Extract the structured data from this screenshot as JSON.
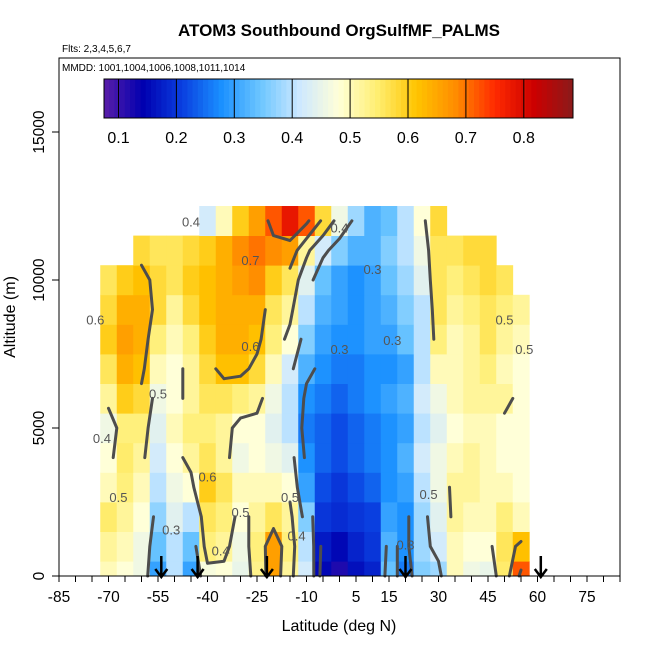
{
  "chart_data": {
    "type": "heatmap",
    "title": "ATOM3 Southbound OrgSulfMF_PALMS",
    "subtitle_flights": "Flts: 2,3,4,5,6,7",
    "subtitle_dates": "MMDD: 1001,1004,1006,1008,1011,1014",
    "xlabel": "Latitude (deg N)",
    "ylabel": "Altitude (m)",
    "xlim": [
      -85,
      85
    ],
    "ylim": [
      0,
      17500
    ],
    "x_tick_labels": [
      "-85",
      "-70",
      "-55",
      "-40",
      "-25",
      "-10",
      "5",
      "15",
      "30",
      "45",
      "60",
      "75"
    ],
    "x_tick_values": [
      -85,
      -70,
      -55,
      -40,
      -25,
      -10,
      5,
      15,
      30,
      45,
      60,
      75
    ],
    "x_minor_step": 5,
    "y_tick_labels": [
      "0",
      "5000",
      "10000",
      "15000"
    ],
    "y_tick_values": [
      0,
      5000,
      10000,
      15000
    ],
    "colorbar": {
      "min": 0.075,
      "max": 0.885,
      "tick_labels": [
        "0.1",
        "0.2",
        "0.3",
        "0.4",
        "0.5",
        "0.6",
        "0.7",
        "0.8"
      ],
      "tick_values": [
        0.1,
        0.2,
        0.3,
        0.4,
        0.5,
        0.6,
        0.7,
        0.8
      ],
      "colors": [
        "#5a1ea8",
        "#0000b0",
        "#0a3fe0",
        "#1a90ff",
        "#6cc6ff",
        "#cde8ff",
        "#ffffd8",
        "#ffee70",
        "#ffc400",
        "#ff8c00",
        "#ff2a00",
        "#cc0000",
        "#8b1a1a"
      ]
    },
    "grid_axes": {
      "lat": [
        -70,
        -65,
        -60,
        -55,
        -50,
        -45,
        -40,
        -35,
        -30,
        -25,
        -20,
        -15,
        -10,
        -5,
        0,
        5,
        10,
        15,
        20,
        25,
        30,
        35,
        40,
        45,
        50,
        55
      ],
      "alt": [
        0,
        1000,
        2000,
        3000,
        4000,
        5000,
        6000,
        7000,
        8000,
        9000,
        10000,
        11000,
        12000
      ]
    },
    "grid_values": [
      [
        0.5,
        0.48,
        0.46,
        0.3,
        0.4,
        0.3,
        0.47,
        0.48,
        0.45,
        0.53,
        0.66,
        0.52,
        0.42,
        0.15,
        0.12,
        0.16,
        0.18,
        0.34,
        0.26,
        0.36,
        0.38,
        0.5,
        0.46,
        0.45,
        0.55,
        0.72
      ],
      [
        0.52,
        0.5,
        0.46,
        0.34,
        0.4,
        0.34,
        0.54,
        0.52,
        0.46,
        0.54,
        0.66,
        0.54,
        0.4,
        0.17,
        0.15,
        0.18,
        0.2,
        0.32,
        0.28,
        0.38,
        0.42,
        0.5,
        0.48,
        0.48,
        0.56,
        0.62
      ],
      [
        0.55,
        0.52,
        0.48,
        0.37,
        0.44,
        0.4,
        0.56,
        0.54,
        0.48,
        0.52,
        0.56,
        0.52,
        0.36,
        0.2,
        0.19,
        0.2,
        0.21,
        0.3,
        0.28,
        0.38,
        0.44,
        0.52,
        0.5,
        0.5,
        0.54,
        0.5
      ],
      [
        0.5,
        0.54,
        0.5,
        0.4,
        0.46,
        0.48,
        0.6,
        0.56,
        0.5,
        0.5,
        0.5,
        0.48,
        0.3,
        0.22,
        0.2,
        0.22,
        0.24,
        0.28,
        0.3,
        0.4,
        0.46,
        0.52,
        0.52,
        0.5,
        0.5,
        0.48
      ],
      [
        0.48,
        0.55,
        0.52,
        0.42,
        0.48,
        0.52,
        0.56,
        0.52,
        0.46,
        0.48,
        0.46,
        0.44,
        0.28,
        0.24,
        0.22,
        0.24,
        0.26,
        0.28,
        0.32,
        0.42,
        0.46,
        0.5,
        0.52,
        0.5,
        0.48,
        0.48
      ],
      [
        0.46,
        0.54,
        0.54,
        0.44,
        0.5,
        0.54,
        0.54,
        0.52,
        0.48,
        0.48,
        0.44,
        0.4,
        0.26,
        0.24,
        0.22,
        0.24,
        0.26,
        0.28,
        0.3,
        0.4,
        0.44,
        0.48,
        0.5,
        0.5,
        0.48,
        0.48
      ],
      [
        0.52,
        0.6,
        0.58,
        0.46,
        0.48,
        0.52,
        0.56,
        0.56,
        0.54,
        0.52,
        0.46,
        0.4,
        0.28,
        0.26,
        0.24,
        0.26,
        0.28,
        0.3,
        0.32,
        0.42,
        0.46,
        0.5,
        0.52,
        0.52,
        0.52,
        0.48
      ],
      [
        0.56,
        0.64,
        0.62,
        0.5,
        0.48,
        0.52,
        0.58,
        0.62,
        0.62,
        0.58,
        0.5,
        0.42,
        0.32,
        0.28,
        0.26,
        0.26,
        0.28,
        0.28,
        0.3,
        0.4,
        0.5,
        0.5,
        0.52,
        0.54,
        0.5,
        0.48
      ],
      [
        0.6,
        0.66,
        0.64,
        0.54,
        0.5,
        0.54,
        0.6,
        0.64,
        0.64,
        0.62,
        0.54,
        0.48,
        0.36,
        0.3,
        0.28,
        0.28,
        0.3,
        0.3,
        0.34,
        0.4,
        0.54,
        0.5,
        0.52,
        0.56,
        0.52,
        0.5
      ],
      [
        0.58,
        0.64,
        0.64,
        0.58,
        0.52,
        0.58,
        0.62,
        0.64,
        0.64,
        0.64,
        0.56,
        0.52,
        0.4,
        0.32,
        0.3,
        0.28,
        0.3,
        0.32,
        0.36,
        0.4,
        0.56,
        0.52,
        0.54,
        0.56,
        0.54,
        0.52
      ],
      [
        0.56,
        0.6,
        0.62,
        0.58,
        0.56,
        0.6,
        0.62,
        0.64,
        0.66,
        0.68,
        0.6,
        0.56,
        0.44,
        0.34,
        0.3,
        0.28,
        0.3,
        0.34,
        0.38,
        0.44,
        0.56,
        0.54,
        0.56,
        0.58,
        0.56,
        0.54
      ],
      [
        0.55,
        0.56,
        0.58,
        0.56,
        0.56,
        0.58,
        0.6,
        0.64,
        0.68,
        0.7,
        0.68,
        0.66,
        0.52,
        0.42,
        0.36,
        0.32,
        0.32,
        0.36,
        0.4,
        0.46,
        0.56,
        0.56,
        0.58,
        0.58,
        0.56,
        0.55
      ],
      [
        0.55,
        0.52,
        0.5,
        0.46,
        0.48,
        0.44,
        0.42,
        0.5,
        0.6,
        0.66,
        0.72,
        0.78,
        0.72,
        0.58,
        0.46,
        0.38,
        0.32,
        0.34,
        0.4,
        0.48,
        0.58,
        0.58,
        0.58,
        0.58,
        0.56,
        0.55
      ]
    ],
    "grid_valid": [
      [
        1,
        1,
        1,
        1,
        1,
        1,
        1,
        1,
        1,
        1,
        1,
        1,
        1,
        1,
        1,
        1,
        1,
        1,
        1,
        1,
        1,
        1,
        1,
        1,
        1,
        1
      ],
      [
        1,
        1,
        1,
        1,
        1,
        1,
        1,
        1,
        1,
        1,
        1,
        1,
        1,
        1,
        1,
        1,
        1,
        1,
        1,
        1,
        1,
        1,
        1,
        1,
        1,
        1
      ],
      [
        1,
        1,
        1,
        1,
        1,
        1,
        1,
        1,
        1,
        1,
        1,
        1,
        1,
        1,
        1,
        1,
        1,
        1,
        1,
        1,
        1,
        1,
        1,
        1,
        1,
        1
      ],
      [
        1,
        1,
        1,
        1,
        1,
        1,
        1,
        1,
        1,
        1,
        1,
        1,
        1,
        1,
        1,
        1,
        1,
        1,
        1,
        1,
        1,
        1,
        1,
        1,
        1,
        1
      ],
      [
        1,
        1,
        1,
        1,
        1,
        1,
        1,
        1,
        1,
        1,
        1,
        1,
        1,
        1,
        1,
        1,
        1,
        1,
        1,
        1,
        1,
        1,
        1,
        1,
        1,
        1
      ],
      [
        1,
        1,
        1,
        1,
        1,
        1,
        1,
        1,
        1,
        1,
        1,
        1,
        1,
        1,
        1,
        1,
        1,
        1,
        1,
        1,
        1,
        1,
        1,
        1,
        1,
        1
      ],
      [
        1,
        1,
        1,
        1,
        1,
        1,
        1,
        1,
        1,
        1,
        1,
        1,
        1,
        1,
        1,
        1,
        1,
        1,
        1,
        1,
        1,
        1,
        1,
        1,
        1,
        1
      ],
      [
        1,
        1,
        1,
        1,
        1,
        1,
        1,
        1,
        1,
        1,
        1,
        1,
        1,
        1,
        1,
        1,
        1,
        1,
        1,
        1,
        1,
        1,
        1,
        1,
        1,
        1
      ],
      [
        1,
        1,
        1,
        1,
        1,
        1,
        1,
        1,
        1,
        1,
        1,
        1,
        1,
        1,
        1,
        1,
        1,
        1,
        1,
        1,
        1,
        1,
        1,
        1,
        1,
        1
      ],
      [
        1,
        1,
        1,
        1,
        1,
        1,
        1,
        1,
        1,
        1,
        1,
        1,
        1,
        1,
        1,
        1,
        1,
        1,
        1,
        1,
        1,
        1,
        1,
        1,
        1,
        1
      ],
      [
        1,
        1,
        1,
        1,
        1,
        1,
        1,
        1,
        1,
        1,
        1,
        1,
        1,
        1,
        1,
        1,
        1,
        1,
        1,
        1,
        1,
        1,
        1,
        1,
        1,
        0
      ],
      [
        0,
        0,
        1,
        1,
        1,
        1,
        1,
        1,
        1,
        1,
        1,
        1,
        1,
        1,
        1,
        1,
        1,
        1,
        1,
        1,
        1,
        1,
        1,
        1,
        0,
        0
      ],
      [
        0,
        0,
        0,
        0,
        0,
        0,
        1,
        1,
        1,
        1,
        1,
        1,
        1,
        1,
        1,
        1,
        1,
        1,
        1,
        1,
        1,
        0,
        0,
        0,
        0,
        0
      ]
    ],
    "contour_labels": [
      {
        "text": "0.6",
        "lat": -74,
        "alt": 8500
      },
      {
        "text": "0.5",
        "lat": -55,
        "alt": 6000
      },
      {
        "text": "0.4",
        "lat": -72,
        "alt": 4500
      },
      {
        "text": "0.5",
        "lat": -67,
        "alt": 2500
      },
      {
        "text": "0.6",
        "lat": -40,
        "alt": 3200
      },
      {
        "text": "0.5",
        "lat": -30,
        "alt": 2000
      },
      {
        "text": "0.4",
        "lat": -36,
        "alt": 700
      },
      {
        "text": "0.3",
        "lat": -51,
        "alt": 1400
      },
      {
        "text": "0.6",
        "lat": -27,
        "alt": 7600
      },
      {
        "text": "0.7",
        "lat": -27,
        "alt": 10500
      },
      {
        "text": "0.4",
        "lat": -45,
        "alt": 11800
      },
      {
        "text": "0.5",
        "lat": -15,
        "alt": 2500
      },
      {
        "text": "0.4",
        "lat": -13,
        "alt": 1200
      },
      {
        "text": "0.3",
        "lat": 0,
        "alt": 7500
      },
      {
        "text": "0.4",
        "lat": 0,
        "alt": 11600
      },
      {
        "text": "0.3",
        "lat": 10,
        "alt": 10200
      },
      {
        "text": "0.3",
        "lat": 16,
        "alt": 7800
      },
      {
        "text": "0.5",
        "lat": 50,
        "alt": 8500
      },
      {
        "text": "0.5",
        "lat": 56,
        "alt": 7500
      },
      {
        "text": "0.5",
        "lat": 27,
        "alt": 2600
      },
      {
        "text": "0.3",
        "lat": 20,
        "alt": 900
      }
    ],
    "arrows_lat": [
      -54,
      -43,
      -22,
      20,
      61
    ]
  }
}
